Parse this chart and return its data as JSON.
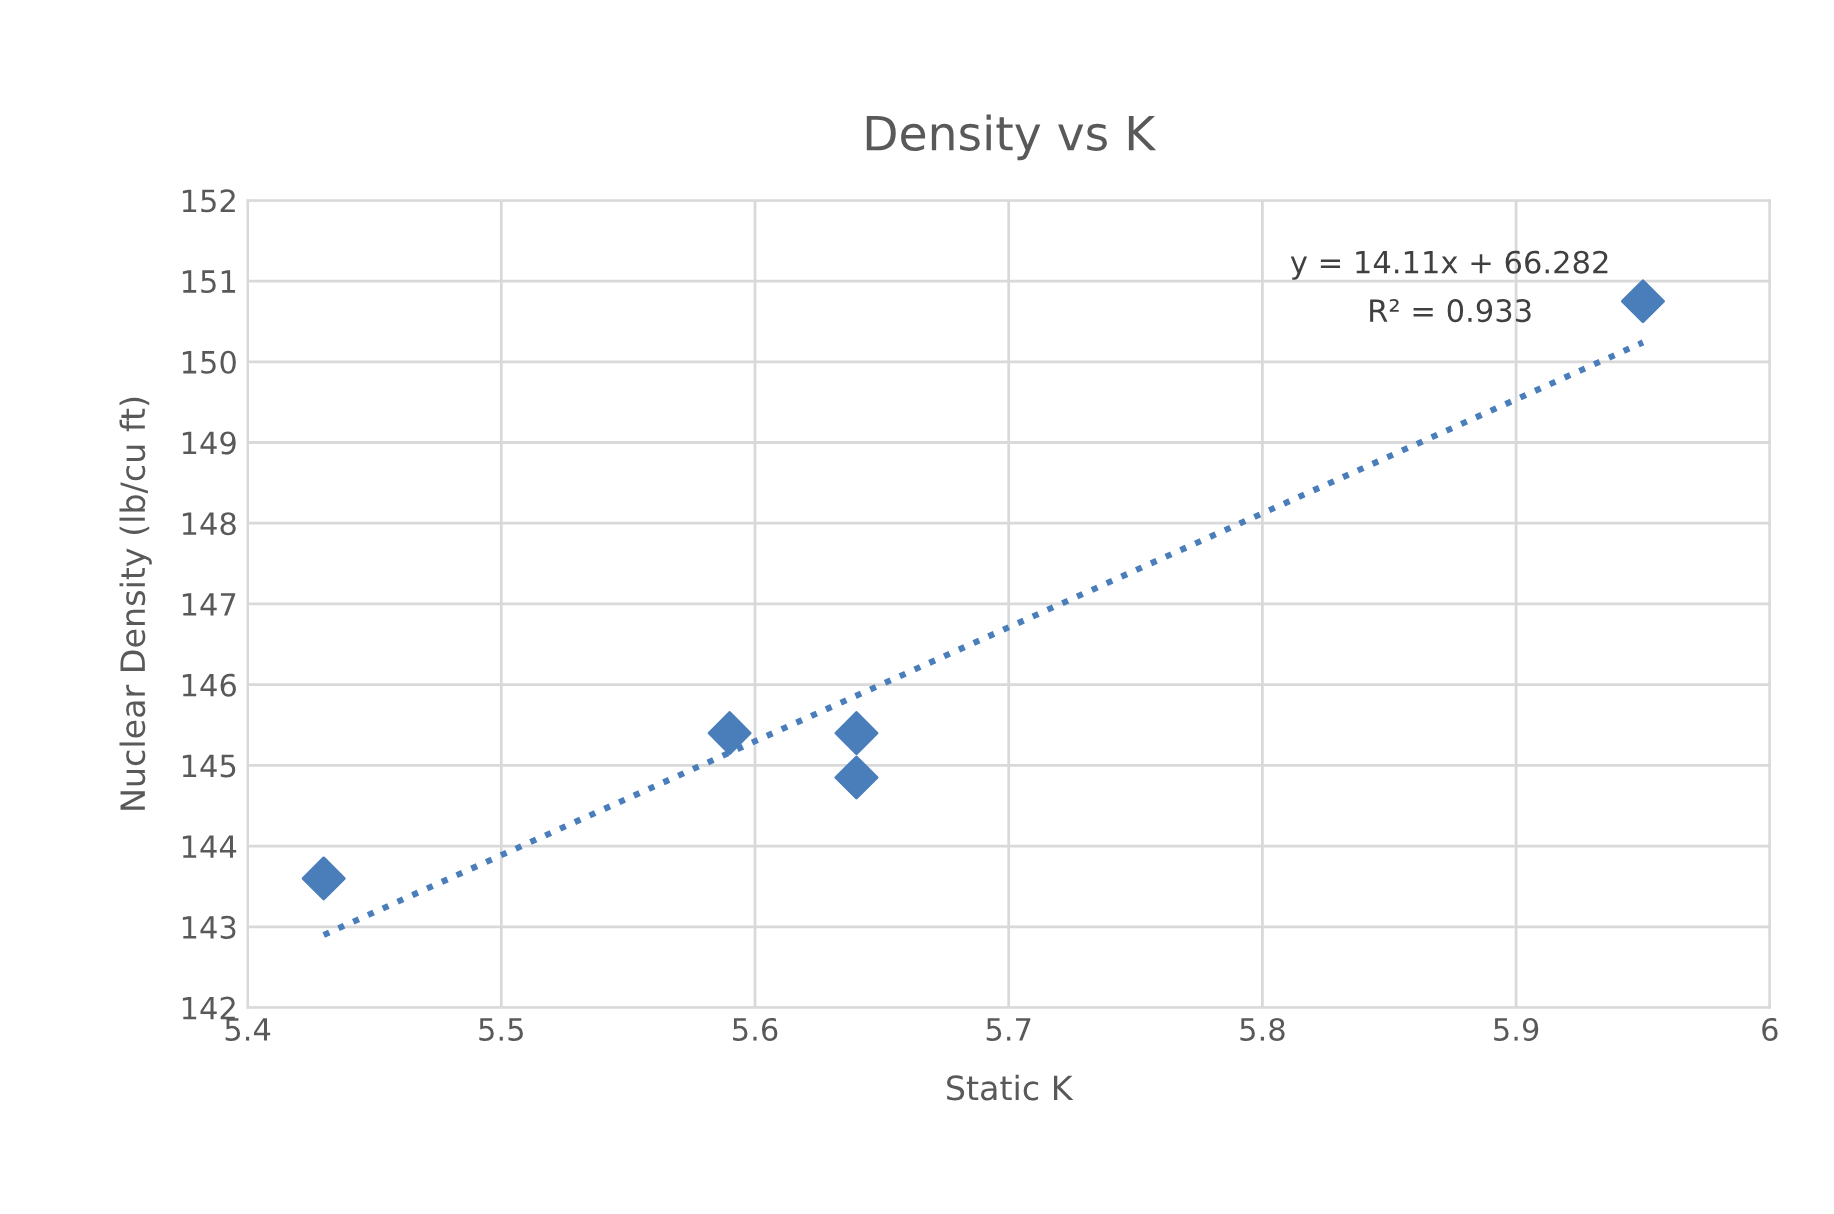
{
  "chart_data": {
    "type": "scatter",
    "title": "Density vs K",
    "xlabel": "Static K",
    "ylabel": "Nuclear Density (lb/cu ft)",
    "series": [
      {
        "color": "#4a7ebb",
        "marker": "diamond",
        "x": [
          5.43,
          5.59,
          5.64,
          5.64,
          5.95
        ],
        "values": [
          143.6,
          145.4,
          145.4,
          144.85,
          150.75
        ]
      },
      {
        "type": "line",
        "color": "#4a7ebb",
        "marker": "none",
        "line_style": "dotted",
        "x": [
          5.43,
          5.95
        ],
        "values": [
          142.9,
          150.24
        ]
      }
    ],
    "annotations": [
      "y = 14.11x + 66.282",
      "R² = 0.933"
    ],
    "xlim": [
      5.4,
      6
    ],
    "xticks": [
      5.4,
      5.5,
      5.6,
      5.7,
      5.8,
      5.9,
      6
    ],
    "ylim": [
      142,
      152
    ],
    "yticks": [
      142,
      143,
      144,
      145,
      146,
      147,
      148,
      149,
      150,
      151,
      152
    ],
    "grid": true,
    "legend": false
  }
}
